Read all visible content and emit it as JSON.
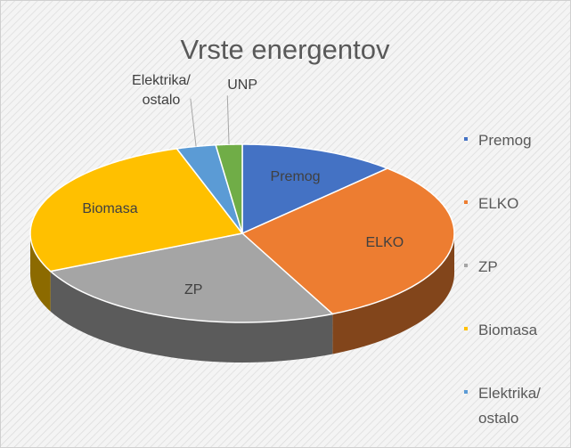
{
  "chart_data": {
    "type": "pie3d",
    "title": "Vrste energentov",
    "categories": [
      "Premog",
      "ELKO",
      "ZP",
      "Biomasa",
      "Elektrika/\nostalo",
      "UNP"
    ],
    "values": [
      12,
      31,
      25,
      27,
      3,
      2
    ],
    "colors": [
      "#4472c4",
      "#ed7d31",
      "#a5a5a5",
      "#ffc000",
      "#5b9bd5",
      "#70ad47"
    ],
    "legend": "right"
  }
}
